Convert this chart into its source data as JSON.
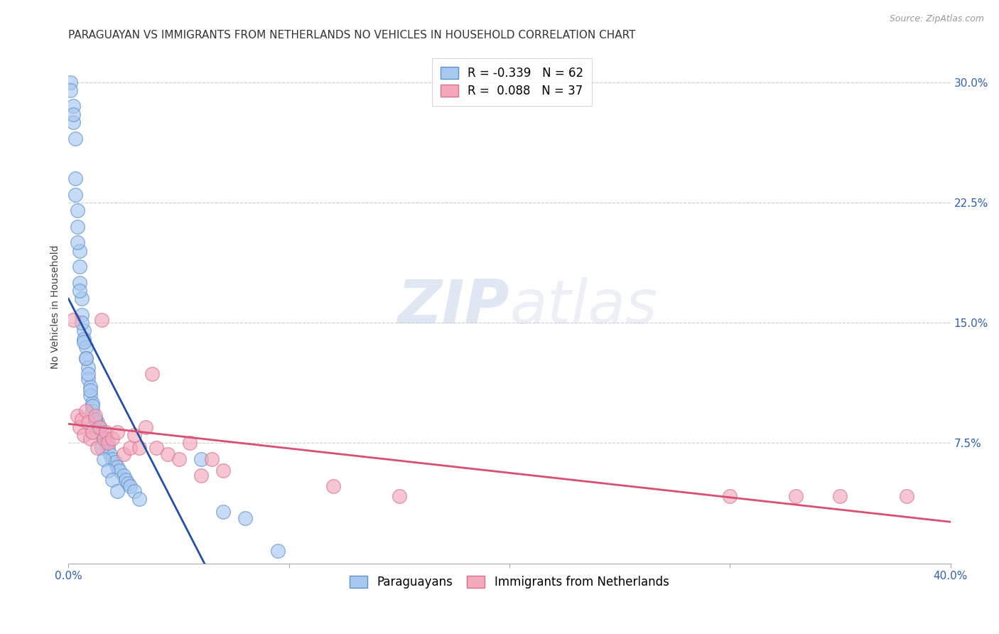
{
  "title": "PARAGUAYAN VS IMMIGRANTS FROM NETHERLANDS NO VEHICLES IN HOUSEHOLD CORRELATION CHART",
  "source": "Source: ZipAtlas.com",
  "ylabel": "No Vehicles in Household",
  "xlim": [
    0.0,
    0.4
  ],
  "ylim": [
    0.0,
    0.32
  ],
  "xticks": [
    0.0,
    0.1,
    0.2,
    0.3,
    0.4
  ],
  "yticks_right": [
    0.075,
    0.15,
    0.225,
    0.3
  ],
  "yticklabels_right": [
    "7.5%",
    "15.0%",
    "22.5%",
    "30.0%"
  ],
  "blue_R": -0.339,
  "blue_N": 62,
  "pink_R": 0.088,
  "pink_N": 37,
  "blue_color": "#A8C8F0",
  "pink_color": "#F4A8BC",
  "blue_edge_color": "#6090C8",
  "pink_edge_color": "#D87090",
  "blue_line_color": "#2050A8",
  "pink_line_color": "#D85070",
  "watermark_color": "#C8D8F0",
  "legend_label_blue": "Paraguayans",
  "legend_label_pink": "Immigrants from Netherlands",
  "blue_x": [
    0.001,
    0.002,
    0.002,
    0.003,
    0.003,
    0.004,
    0.004,
    0.005,
    0.005,
    0.005,
    0.006,
    0.006,
    0.007,
    0.007,
    0.008,
    0.008,
    0.009,
    0.009,
    0.01,
    0.01,
    0.011,
    0.011,
    0.012,
    0.013,
    0.014,
    0.015,
    0.016,
    0.017,
    0.018,
    0.019,
    0.02,
    0.021,
    0.022,
    0.023,
    0.025,
    0.026,
    0.027,
    0.028,
    0.03,
    0.032,
    0.001,
    0.002,
    0.003,
    0.004,
    0.005,
    0.006,
    0.007,
    0.008,
    0.009,
    0.01,
    0.011,
    0.012,
    0.013,
    0.015,
    0.016,
    0.018,
    0.02,
    0.022,
    0.06,
    0.07,
    0.08,
    0.095
  ],
  "blue_y": [
    0.3,
    0.285,
    0.275,
    0.265,
    0.23,
    0.22,
    0.21,
    0.195,
    0.185,
    0.175,
    0.165,
    0.155,
    0.145,
    0.14,
    0.135,
    0.128,
    0.122,
    0.115,
    0.11,
    0.105,
    0.1,
    0.095,
    0.09,
    0.088,
    0.085,
    0.082,
    0.078,
    0.075,
    0.072,
    0.068,
    0.065,
    0.063,
    0.06,
    0.058,
    0.055,
    0.052,
    0.05,
    0.048,
    0.045,
    0.04,
    0.295,
    0.28,
    0.24,
    0.2,
    0.17,
    0.15,
    0.138,
    0.128,
    0.118,
    0.108,
    0.098,
    0.09,
    0.082,
    0.072,
    0.065,
    0.058,
    0.052,
    0.045,
    0.065,
    0.032,
    0.028,
    0.008
  ],
  "pink_x": [
    0.002,
    0.004,
    0.005,
    0.006,
    0.007,
    0.008,
    0.009,
    0.01,
    0.011,
    0.012,
    0.013,
    0.014,
    0.015,
    0.016,
    0.017,
    0.018,
    0.02,
    0.022,
    0.025,
    0.028,
    0.03,
    0.032,
    0.035,
    0.038,
    0.04,
    0.045,
    0.05,
    0.055,
    0.06,
    0.065,
    0.07,
    0.12,
    0.15,
    0.3,
    0.33,
    0.35,
    0.38
  ],
  "pink_y": [
    0.152,
    0.092,
    0.085,
    0.09,
    0.08,
    0.095,
    0.088,
    0.078,
    0.082,
    0.092,
    0.072,
    0.085,
    0.152,
    0.078,
    0.082,
    0.075,
    0.078,
    0.082,
    0.068,
    0.072,
    0.08,
    0.072,
    0.085,
    0.118,
    0.072,
    0.068,
    0.065,
    0.075,
    0.055,
    0.065,
    0.058,
    0.048,
    0.042,
    0.042,
    0.042,
    0.042,
    0.042
  ],
  "background_color": "#FFFFFF",
  "title_fontsize": 11,
  "axis_label_fontsize": 10,
  "tick_fontsize": 11,
  "legend_fontsize": 12
}
